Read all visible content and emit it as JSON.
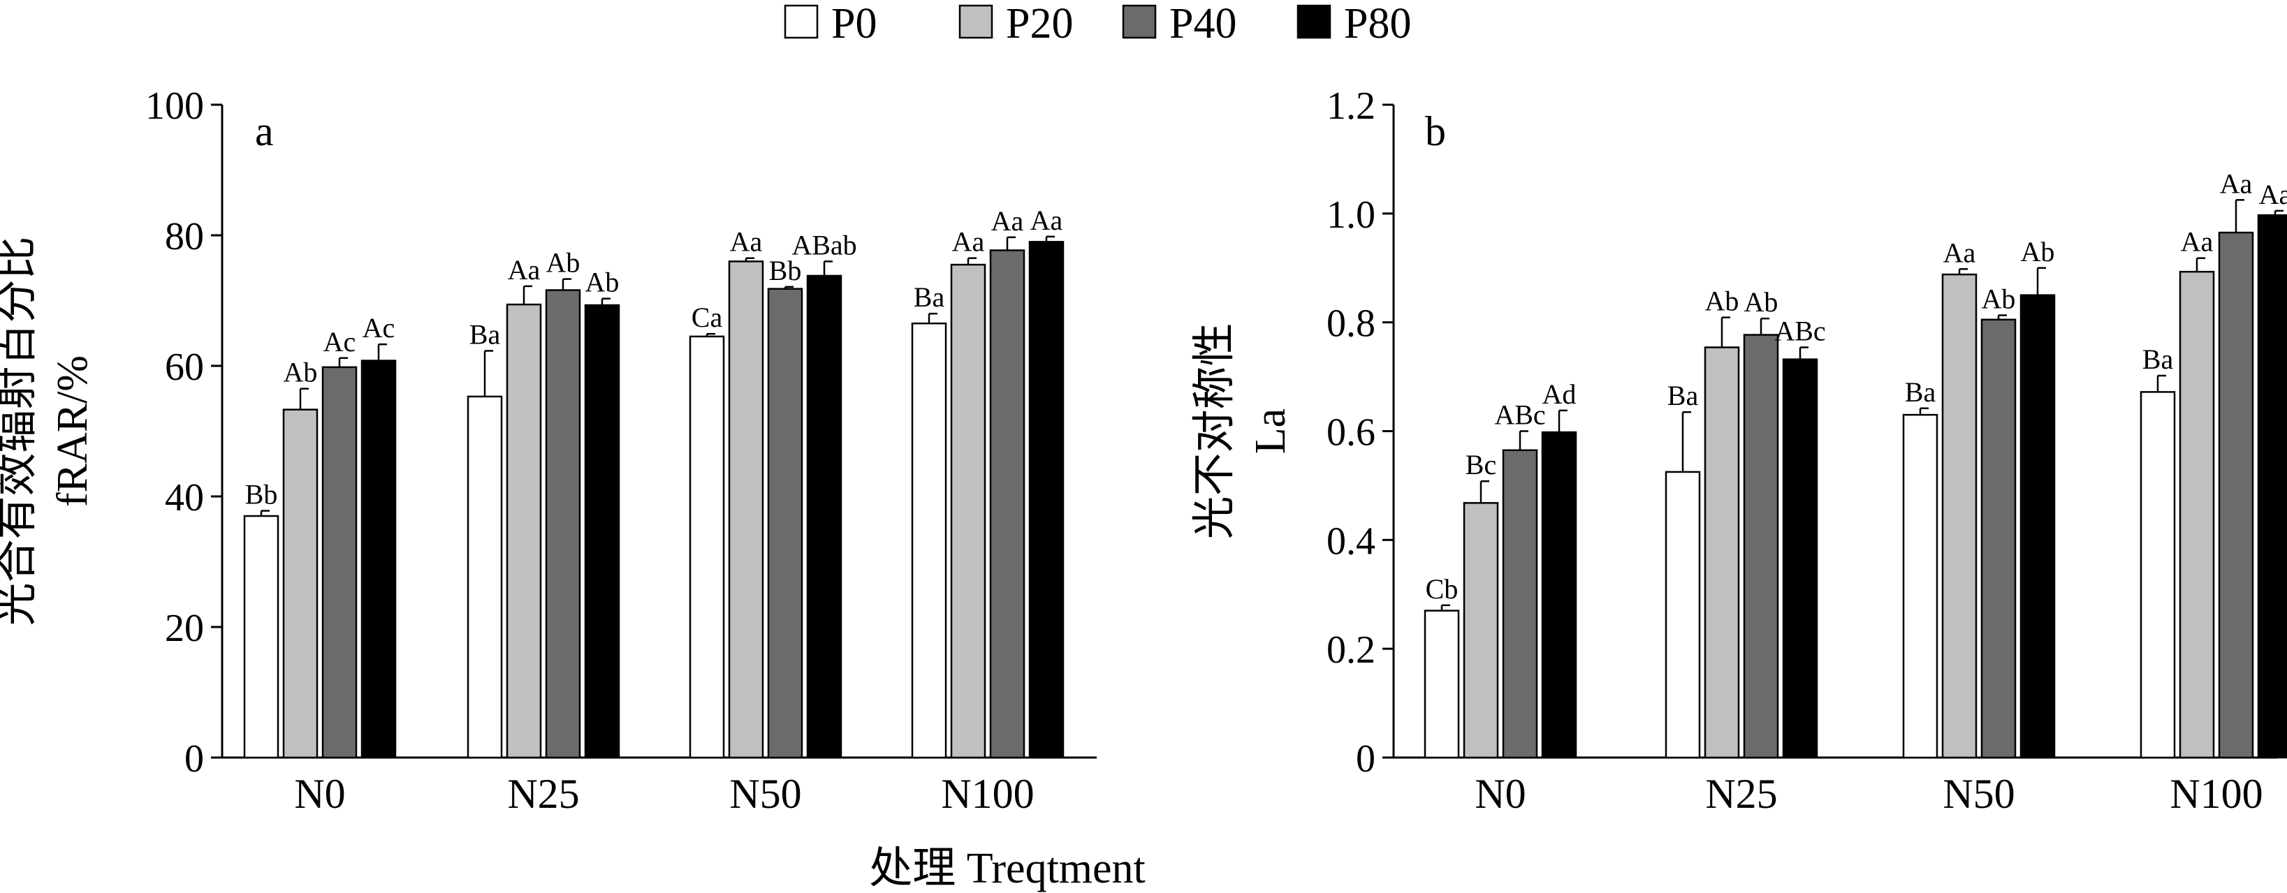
{
  "legend": {
    "series_names": [
      "P0",
      "P20",
      "P40",
      "P80"
    ],
    "series_colors": [
      "#ffffff",
      "#c0c0c0",
      "#6b6b6b",
      "#000000"
    ]
  },
  "x_axis_title": "处理 Treqtment",
  "chart_data": [
    {
      "type": "bar",
      "panel": "a",
      "categories": [
        "N0",
        "N25",
        "N50",
        "N100"
      ],
      "ylabel_line1": "光合有效辐射百分比",
      "ylabel_line2": "fRAR/%",
      "ylim": [
        0,
        100
      ],
      "yticks": [
        "0",
        "20",
        "40",
        "60",
        "80",
        "100"
      ],
      "series": [
        {
          "name": "P0",
          "values": [
            37.0,
            55.3,
            64.5,
            66.5
          ],
          "errors": [
            0.8,
            7.0,
            0.4,
            1.5
          ],
          "labels": [
            "Bb",
            "Ba",
            "Ca",
            "Ba"
          ]
        },
        {
          "name": "P20",
          "values": [
            53.3,
            69.4,
            76.0,
            75.5
          ],
          "errors": [
            3.2,
            2.8,
            0.5,
            1.0
          ],
          "labels": [
            "Ab",
            "Aa",
            "Aa",
            "Aa"
          ]
        },
        {
          "name": "P40",
          "values": [
            59.8,
            71.6,
            71.8,
            77.7
          ],
          "errors": [
            1.4,
            1.7,
            0.3,
            2.0
          ],
          "labels": [
            "Ac",
            "Ab",
            "Bb",
            "Aa"
          ]
        },
        {
          "name": "P80",
          "values": [
            60.8,
            69.3,
            73.8,
            79.0
          ],
          "errors": [
            2.5,
            1.0,
            2.2,
            0.8
          ],
          "labels": [
            "Ac",
            "Ab",
            "ABab",
            "Aa"
          ]
        }
      ]
    },
    {
      "type": "bar",
      "panel": "b",
      "categories": [
        "N0",
        "N25",
        "N50",
        "N100"
      ],
      "ylabel_line1": "光不对称性",
      "ylabel_line2": "La",
      "ylim": [
        0,
        1.2
      ],
      "yticks": [
        "0",
        "0.2",
        "0.4",
        "0.6",
        "0.8",
        "1.0",
        "1.2"
      ],
      "series": [
        {
          "name": "P0",
          "values": [
            0.27,
            0.525,
            0.63,
            0.672
          ],
          "errors": [
            0.01,
            0.11,
            0.012,
            0.03
          ],
          "labels": [
            "Cb",
            "Ba",
            "Ba",
            "Ba"
          ]
        },
        {
          "name": "P20",
          "values": [
            0.468,
            0.754,
            0.888,
            0.893
          ],
          "errors": [
            0.04,
            0.055,
            0.01,
            0.025
          ],
          "labels": [
            "Bc",
            "Ab",
            "Aa",
            "Aa"
          ]
        },
        {
          "name": "P40",
          "values": [
            0.565,
            0.777,
            0.805,
            0.965
          ],
          "errors": [
            0.035,
            0.03,
            0.008,
            0.06
          ],
          "labels": [
            "ABc",
            "Ab",
            "Ab",
            "Aa"
          ]
        },
        {
          "name": "P80",
          "values": [
            0.598,
            0.732,
            0.85,
            0.997
          ],
          "errors": [
            0.04,
            0.022,
            0.05,
            0.008
          ],
          "labels": [
            "Ad",
            "ABc",
            "Ab",
            "Aa"
          ]
        }
      ]
    }
  ]
}
